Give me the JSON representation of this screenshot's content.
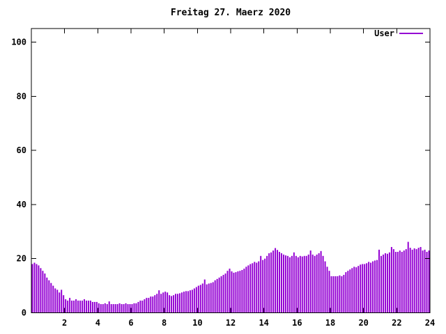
{
  "window": {
    "background": "#ffffff"
  },
  "chart_data": {
    "type": "bar",
    "title": "Freitag 27. Maerz 2020",
    "xlabel": "",
    "ylabel": "",
    "xlim": [
      0,
      24
    ],
    "ylim": [
      0,
      105
    ],
    "xticks": [
      2,
      4,
      6,
      8,
      10,
      12,
      14,
      16,
      18,
      20,
      22,
      24
    ],
    "yticks": [
      0,
      20,
      40,
      60,
      80,
      100
    ],
    "grid": false,
    "legend_position": "top-right-inside",
    "x_unit": "hour-of-day",
    "samples_per_hour": 8,
    "series": [
      {
        "name": "User",
        "color": "#9400d3",
        "values": [
          18,
          18.5,
          18,
          17.5,
          16.5,
          15.5,
          14.5,
          13,
          12,
          11,
          10,
          9,
          8.5,
          7.5,
          8.5,
          6.5,
          5,
          4.5,
          5.5,
          4.5,
          4.5,
          5,
          4.5,
          4.5,
          4.5,
          5,
          4.5,
          4.5,
          4.5,
          4,
          4,
          4,
          3.5,
          3.2,
          3.2,
          3.5,
          3.2,
          4.2,
          3.2,
          3.2,
          3.2,
          3.2,
          3.5,
          3.2,
          3.2,
          3.5,
          3.2,
          3.2,
          3.2,
          3.5,
          3.5,
          4,
          4.5,
          4.5,
          5,
          5.5,
          5.5,
          6,
          6,
          6.5,
          7,
          8.3,
          7,
          7.5,
          7.8,
          7.5,
          6.5,
          6.2,
          6.5,
          7,
          7,
          7.2,
          7.5,
          7.8,
          8,
          8,
          8.3,
          8.5,
          9,
          9.5,
          10,
          10.3,
          10.8,
          12.3,
          10.5,
          10.8,
          11,
          11.3,
          12,
          12.5,
          13,
          13.5,
          14,
          14.5,
          15.5,
          16.3,
          15.3,
          14.8,
          15,
          15.3,
          15.5,
          15.8,
          16.3,
          17,
          17.5,
          18,
          18.3,
          18.8,
          18.5,
          19,
          21,
          19.5,
          20,
          21,
          22,
          22.3,
          23,
          23.9,
          23.2,
          22.5,
          22,
          21.5,
          21.2,
          21,
          20.5,
          21,
          22.3,
          21,
          20.5,
          21,
          20.8,
          21,
          21,
          21.5,
          23,
          21.5,
          21,
          21.5,
          22,
          22.8,
          21,
          19,
          17,
          15.5,
          13.5,
          13.5,
          13.5,
          13.5,
          13.8,
          13.5,
          14,
          15,
          15.5,
          16,
          16.5,
          17,
          16.8,
          17.3,
          17.8,
          18,
          18,
          18.3,
          18.8,
          18.5,
          19,
          19.3,
          19.5,
          23.3,
          21,
          21.5,
          22,
          21.8,
          22.3,
          24.3,
          23.5,
          22.5,
          22.5,
          23,
          22.5,
          23,
          23.5,
          26.2,
          24,
          23.3,
          23.8,
          23.5,
          24,
          24.3,
          23,
          23.3,
          22.5,
          23
        ]
      }
    ],
    "colors": {
      "bar": "#9400d3",
      "axis": "#000000",
      "text": "#000000",
      "background": "#ffffff"
    }
  }
}
